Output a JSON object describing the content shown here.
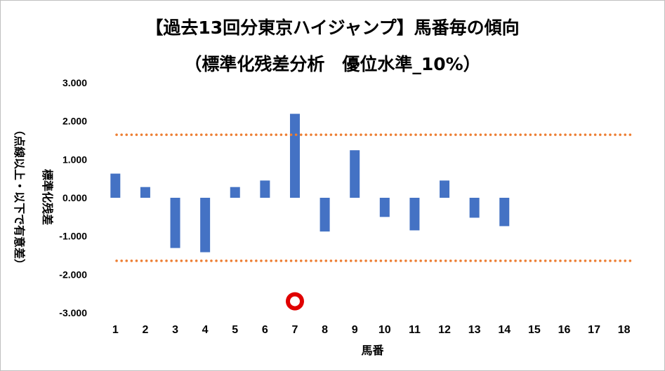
{
  "chart_data": {
    "type": "bar",
    "title_line1": "【過去13回分東京ハイジャンプ】馬番毎の傾向",
    "title_line2": "（標準化残差分析　優位水準_10%）",
    "xlabel": "馬番",
    "ylabel_main": "標準化残差",
    "ylabel_sub": "（点線以上・以下で有意差）",
    "categories": [
      "1",
      "2",
      "3",
      "4",
      "5",
      "6",
      "7",
      "8",
      "9",
      "10",
      "11",
      "12",
      "13",
      "14",
      "15",
      "16",
      "17",
      "18"
    ],
    "values": [
      0.63,
      0.28,
      -1.31,
      -1.42,
      0.28,
      0.45,
      2.19,
      -0.88,
      1.24,
      -0.5,
      -0.85,
      0.45,
      -0.52,
      -0.74,
      null,
      null,
      null,
      null
    ],
    "ylim": [
      -3.0,
      3.0
    ],
    "yticks": [
      "3.000",
      "2.000",
      "1.000",
      "0.000",
      "-1.000",
      "-2.000",
      "-3.000"
    ],
    "ytick_values": [
      3,
      2,
      1,
      0,
      -1,
      -2,
      -3
    ],
    "threshold_upper": 1.645,
    "threshold_lower": -1.645,
    "marker": {
      "category": "7",
      "value": -2.7
    },
    "bar_color": "#4472c4",
    "threshold_color": "#ed7d31",
    "marker_color": "#e00000",
    "grid": true,
    "legend": "none"
  }
}
